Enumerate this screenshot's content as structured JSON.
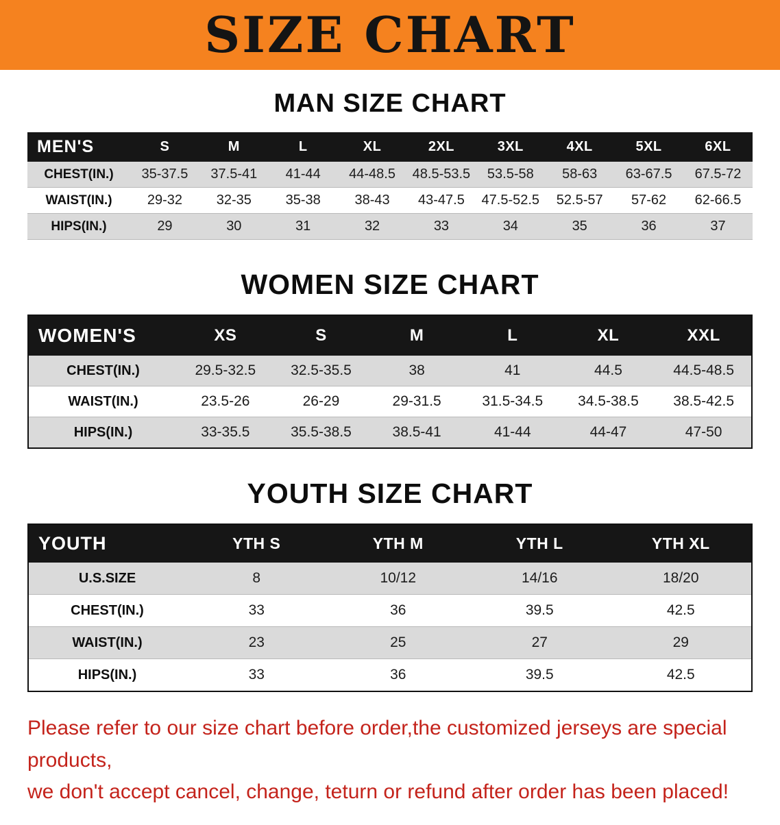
{
  "banner": {
    "title": "SIZE CHART"
  },
  "colors": {
    "banner_bg": "#f5821f",
    "table_header_bg": "#161616",
    "row_alt_bg": "#dadada",
    "disclaimer_text": "#c4231b"
  },
  "sections": [
    {
      "heading": "MAN SIZE CHART",
      "label_header": "MEN'S",
      "columns": [
        "S",
        "M",
        "L",
        "XL",
        "2XL",
        "3XL",
        "4XL",
        "5XL",
        "6XL"
      ],
      "rows": [
        {
          "label": "CHEST(IN.)",
          "values": [
            "35-37.5",
            "37.5-41",
            "41-44",
            "44-48.5",
            "48.5-53.5",
            "53.5-58",
            "58-63",
            "63-67.5",
            "67.5-72"
          ]
        },
        {
          "label": "WAIST(IN.)",
          "values": [
            "29-32",
            "32-35",
            "35-38",
            "38-43",
            "43-47.5",
            "47.5-52.5",
            "52.5-57",
            "57-62",
            "62-66.5"
          ]
        },
        {
          "label": "HIPS(IN.)",
          "values": [
            "29",
            "30",
            "31",
            "32",
            "33",
            "34",
            "35",
            "36",
            "37"
          ]
        }
      ]
    },
    {
      "heading": "WOMEN SIZE CHART",
      "label_header": "WOMEN'S",
      "columns": [
        "XS",
        "S",
        "M",
        "L",
        "XL",
        "XXL"
      ],
      "rows": [
        {
          "label": "CHEST(IN.)",
          "values": [
            "29.5-32.5",
            "32.5-35.5",
            "38",
            "41",
            "44.5",
            "44.5-48.5"
          ]
        },
        {
          "label": "WAIST(IN.)",
          "values": [
            "23.5-26",
            "26-29",
            "29-31.5",
            "31.5-34.5",
            "34.5-38.5",
            "38.5-42.5"
          ]
        },
        {
          "label": "HIPS(IN.)",
          "values": [
            "33-35.5",
            "35.5-38.5",
            "38.5-41",
            "41-44",
            "44-47",
            "47-50"
          ]
        }
      ]
    },
    {
      "heading": "YOUTH SIZE CHART",
      "label_header": "YOUTH",
      "columns": [
        "YTH S",
        "YTH M",
        "YTH L",
        "YTH XL"
      ],
      "rows": [
        {
          "label": "U.S.SIZE",
          "values": [
            "8",
            "10/12",
            "14/16",
            "18/20"
          ]
        },
        {
          "label": "CHEST(IN.)",
          "values": [
            "33",
            "36",
            "39.5",
            "42.5"
          ]
        },
        {
          "label": "WAIST(IN.)",
          "values": [
            "23",
            "25",
            "27",
            "29"
          ]
        },
        {
          "label": "HIPS(IN.)",
          "values": [
            "33",
            "36",
            "39.5",
            "42.5"
          ]
        }
      ]
    }
  ],
  "disclaimer": {
    "line1": "Please refer to our size chart before order,the customized jerseys are special products,",
    "line2": "we don't accept cancel, change, teturn or refund after order has been placed!"
  }
}
